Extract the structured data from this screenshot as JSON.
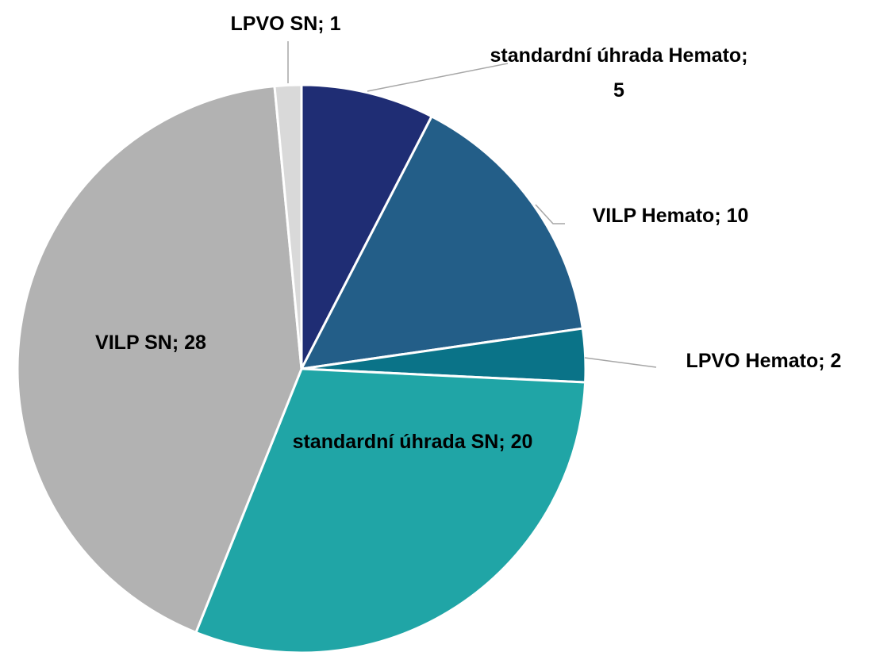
{
  "chart_data": {
    "type": "pie",
    "categories": [
      "standardní úhrada Hemato",
      "VILP Hemato",
      "LPVO Hemato",
      "standardní úhrada SN",
      "VILP SN",
      "LPVO SN"
    ],
    "values": [
      5,
      10,
      2,
      20,
      28,
      1
    ],
    "colors": [
      "#1f2d74",
      "#235e88",
      "#0a7388",
      "#20a5a6",
      "#b2b2b2",
      "#d9d9d9"
    ]
  }
}
